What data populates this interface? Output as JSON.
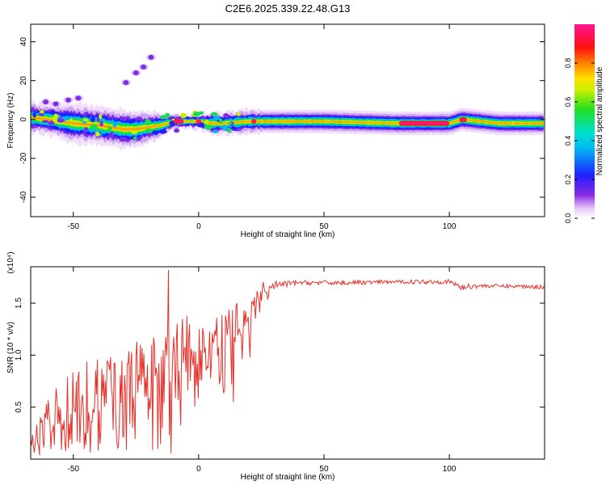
{
  "figure_title": "C2E6.2025.339.22.48.G13",
  "chart_data": [
    {
      "type": "heatmap",
      "title": "C2E6.2025.339.22.48.G13",
      "xlabel": "Height of straight line (km)",
      "ylabel": "Frequency (Hz)",
      "xlim": [
        -67,
        138
      ],
      "ylim": [
        -50,
        49
      ],
      "x_ticks": [
        -50,
        0,
        50,
        100
      ],
      "y_ticks": [
        -40,
        -20,
        0,
        20,
        40
      ],
      "x_tick_labels": [
        "-50",
        "0",
        "50",
        "100"
      ],
      "y_tick_labels": [
        "-40",
        "-20",
        "0",
        "20",
        "40"
      ],
      "colorbar": {
        "label": "Normalized spectral amplitude",
        "range": [
          0,
          1
        ],
        "ticks": [
          "0.0",
          "0.2",
          "0.4",
          "0.6",
          "0.8"
        ],
        "colormap": "rainbow (white→violet→blue→cyan→green→yellow→red→magenta)"
      },
      "ridge": {
        "description": "Main spectral ridge (frequency centre vs height)",
        "x": [
          -67,
          -60,
          -50,
          -40,
          -30,
          -25,
          -20,
          -15,
          -10,
          -5,
          0,
          5,
          10,
          20,
          30,
          50,
          80,
          100,
          105,
          120,
          138
        ],
        "center_hz": [
          1,
          0,
          -2,
          -3,
          -5,
          -5,
          -4,
          -3,
          -1,
          -1,
          -1,
          -2,
          -2,
          -1,
          -1,
          -1,
          -2,
          -2,
          0,
          -2,
          -2
        ],
        "half_width_hz": [
          4,
          4,
          5,
          5,
          5,
          5,
          4,
          3,
          2,
          2,
          2,
          3,
          3,
          3,
          3,
          3,
          3,
          3,
          3,
          3,
          3
        ],
        "peak_segments_x": [
          [
            -10,
            -6
          ],
          [
            -1,
            1
          ],
          [
            21,
            23
          ],
          [
            80,
            100
          ],
          [
            104,
            107
          ]
        ]
      },
      "side_blobs": [
        {
          "x": -61,
          "y": 9
        },
        {
          "x": -57,
          "y": 8
        },
        {
          "x": -52,
          "y": 10
        },
        {
          "x": -48,
          "y": 11
        },
        {
          "x": -29,
          "y": 19
        },
        {
          "x": -25,
          "y": 24
        },
        {
          "x": -22,
          "y": 27
        },
        {
          "x": -19,
          "y": 32
        }
      ]
    },
    {
      "type": "line",
      "xlabel": "Height of straight line (km)",
      "ylabel": "SNR (10 * v/v)",
      "scale_note": "(x10⁴)",
      "xlim": [
        -67,
        138
      ],
      "ylim": [
        0,
        1.85
      ],
      "x_ticks": [
        -50,
        0,
        50,
        100
      ],
      "y_ticks": [
        0.5,
        1.0,
        1.5
      ],
      "x_tick_labels": [
        "-50",
        "0",
        "50",
        "100"
      ],
      "y_tick_labels": [
        "0.5",
        "1.0",
        "1.5"
      ],
      "color": "#e8312a",
      "envelope": {
        "x": [
          -67,
          -60,
          -50,
          -40,
          -30,
          -20,
          -10,
          -5,
          0,
          10,
          20,
          25,
          30,
          40,
          60,
          80,
          90,
          100,
          105,
          110,
          120,
          138
        ],
        "low": [
          0.02,
          0.05,
          0.05,
          0.05,
          0.05,
          0.05,
          0.05,
          0.3,
          0.55,
          0.6,
          0.9,
          1.4,
          1.6,
          1.65,
          1.66,
          1.66,
          1.66,
          1.66,
          1.58,
          1.62,
          1.63,
          1.62
        ],
        "high": [
          0.2,
          0.6,
          0.9,
          1.0,
          1.05,
          1.2,
          1.3,
          1.4,
          1.25,
          1.45,
          1.55,
          1.7,
          1.73,
          1.73,
          1.73,
          1.73,
          1.74,
          1.74,
          1.7,
          1.7,
          1.69,
          1.69
        ],
        "mid": [
          0.1,
          0.25,
          0.35,
          0.45,
          0.5,
          0.6,
          0.7,
          0.95,
          0.9,
          1.0,
          1.25,
          1.55,
          1.66,
          1.69,
          1.69,
          1.7,
          1.7,
          1.7,
          1.64,
          1.66,
          1.66,
          1.65
        ]
      },
      "spikes": [
        {
          "x": -12,
          "y": 1.82
        },
        {
          "x": 14,
          "y": 0.55
        }
      ]
    }
  ]
}
